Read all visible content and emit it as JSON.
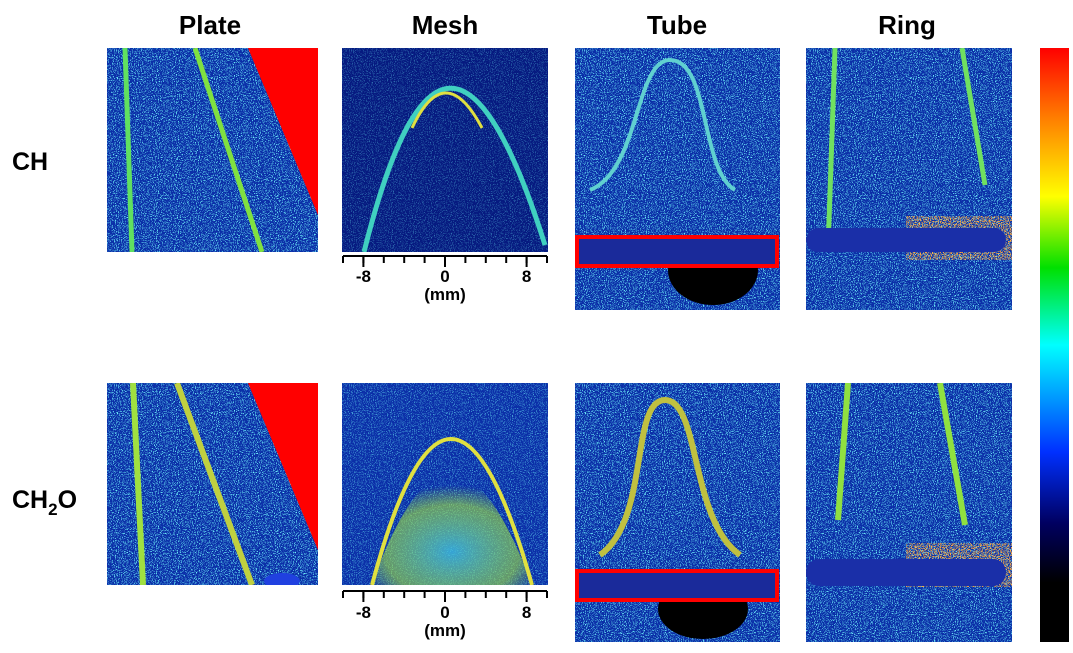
{
  "columns": [
    "Plate",
    "Mesh",
    "Tube",
    "Ring"
  ],
  "rows": [
    {
      "label": [
        "CH"
      ]
    },
    {
      "label": [
        "CH",
        "2",
        "O"
      ]
    }
  ],
  "mesh_axis": {
    "lim": [
      -10,
      10
    ],
    "ticks": [
      -8,
      0,
      8
    ],
    "minor_ticks": [
      -10,
      -8,
      -6,
      -4,
      -2,
      0,
      2,
      4,
      6,
      8,
      10
    ],
    "label": "(mm)"
  }
}
